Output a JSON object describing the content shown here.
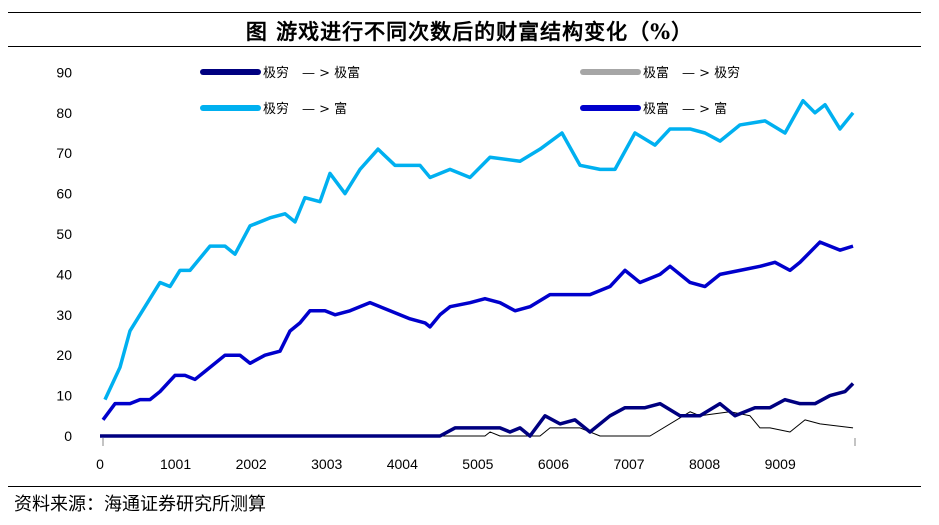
{
  "title": "图  游戏进行不同次数后的财富结构变化（%）",
  "source": "资料来源：海通证券研究所测算",
  "chart_data": {
    "type": "line",
    "title": "图  游戏进行不同次数后的财富结构变化（%）",
    "xlabel": "",
    "ylabel": "",
    "xlim": [
      0,
      10000
    ],
    "ylim": [
      0,
      90
    ],
    "x_ticks": [
      "0",
      "1001",
      "2002",
      "3003",
      "4004",
      "5005",
      "6006",
      "7007",
      "8008",
      "9009"
    ],
    "y_ticks": [
      "0",
      "10",
      "20",
      "30",
      "40",
      "50",
      "60",
      "70",
      "80",
      "90"
    ],
    "grid": false,
    "legend_placement": "top",
    "series": [
      {
        "name": "极穷　— > 极富",
        "color": "#000080",
        "points": [
          [
            0,
            0
          ],
          [
            4503,
            0
          ],
          [
            4702,
            2
          ],
          [
            4901,
            2
          ],
          [
            5166,
            2
          ],
          [
            5298,
            2
          ],
          [
            5430,
            1
          ],
          [
            5563,
            2
          ],
          [
            5695,
            0
          ],
          [
            5894,
            5
          ],
          [
            6093,
            3
          ],
          [
            6291,
            4
          ],
          [
            6490,
            1
          ],
          [
            6755,
            5
          ],
          [
            6954,
            7
          ],
          [
            7219,
            7
          ],
          [
            7417,
            8
          ],
          [
            7682,
            5
          ],
          [
            7947,
            5
          ],
          [
            8212,
            8
          ],
          [
            8411,
            5
          ],
          [
            8675,
            7
          ],
          [
            8874,
            7
          ],
          [
            9073,
            9
          ],
          [
            9272,
            8
          ],
          [
            9470,
            8
          ],
          [
            9669,
            10
          ],
          [
            9868,
            11
          ],
          [
            9974,
            13
          ]
        ]
      },
      {
        "name": "极富　— > 极穷",
        "color": "#A6A6A6",
        "line_color": "#000000",
        "points": [
          [
            0,
            0
          ],
          [
            5099,
            0
          ],
          [
            5166,
            1
          ],
          [
            5298,
            0
          ],
          [
            5828,
            0
          ],
          [
            5960,
            2
          ],
          [
            6358,
            2
          ],
          [
            6623,
            0
          ],
          [
            7285,
            0
          ],
          [
            7815,
            6
          ],
          [
            7947,
            5
          ],
          [
            8344,
            6
          ],
          [
            8609,
            5
          ],
          [
            8742,
            2
          ],
          [
            8874,
            2
          ],
          [
            9139,
            1
          ],
          [
            9338,
            4
          ],
          [
            9536,
            3
          ],
          [
            9974,
            2
          ]
        ]
      },
      {
        "name": "极穷　— > 富",
        "color": "#00B0F0",
        "points": [
          [
            66,
            9
          ],
          [
            265,
            17
          ],
          [
            397,
            26
          ],
          [
            795,
            38
          ],
          [
            927,
            37
          ],
          [
            1060,
            41
          ],
          [
            1192,
            41
          ],
          [
            1457,
            47
          ],
          [
            1656,
            47
          ],
          [
            1788,
            45
          ],
          [
            1987,
            52
          ],
          [
            2252,
            54
          ],
          [
            2450,
            55
          ],
          [
            2583,
            53
          ],
          [
            2715,
            59
          ],
          [
            2914,
            58
          ],
          [
            3046,
            65
          ],
          [
            3245,
            60
          ],
          [
            3444,
            66
          ],
          [
            3682,
            71
          ],
          [
            3907,
            67
          ],
          [
            4238,
            67
          ],
          [
            4371,
            64
          ],
          [
            4636,
            66
          ],
          [
            4901,
            64
          ],
          [
            5166,
            69
          ],
          [
            5563,
            68
          ],
          [
            5828,
            71
          ],
          [
            6119,
            75
          ],
          [
            6358,
            67
          ],
          [
            6623,
            66
          ],
          [
            6821,
            66
          ],
          [
            7086,
            75
          ],
          [
            7351,
            72
          ],
          [
            7550,
            76
          ],
          [
            7815,
            76
          ],
          [
            8013,
            75
          ],
          [
            8212,
            73
          ],
          [
            8477,
            77
          ],
          [
            8808,
            78
          ],
          [
            9073,
            75
          ],
          [
            9311,
            83
          ],
          [
            9470,
            80
          ],
          [
            9603,
            82
          ],
          [
            9801,
            76
          ],
          [
            9974,
            80
          ]
        ]
      },
      {
        "name": "极富　— > 富",
        "color": "#0000CC",
        "points": [
          [
            40,
            4
          ],
          [
            199,
            8
          ],
          [
            397,
            8
          ],
          [
            530,
            9
          ],
          [
            662,
            9
          ],
          [
            795,
            11
          ],
          [
            993,
            15
          ],
          [
            1126,
            15
          ],
          [
            1258,
            14
          ],
          [
            1391,
            16
          ],
          [
            1656,
            20
          ],
          [
            1854,
            20
          ],
          [
            1987,
            18
          ],
          [
            2185,
            20
          ],
          [
            2384,
            21
          ],
          [
            2517,
            26
          ],
          [
            2649,
            28
          ],
          [
            2781,
            31
          ],
          [
            2980,
            31
          ],
          [
            3113,
            30
          ],
          [
            3311,
            31
          ],
          [
            3576,
            33
          ],
          [
            3841,
            31
          ],
          [
            4106,
            29
          ],
          [
            4305,
            28
          ],
          [
            4371,
            27
          ],
          [
            4503,
            30
          ],
          [
            4636,
            32
          ],
          [
            4901,
            33
          ],
          [
            5099,
            34
          ],
          [
            5298,
            33
          ],
          [
            5497,
            31
          ],
          [
            5695,
            32
          ],
          [
            5960,
            35
          ],
          [
            6159,
            35
          ],
          [
            6490,
            35
          ],
          [
            6755,
            37
          ],
          [
            6954,
            41
          ],
          [
            7152,
            38
          ],
          [
            7417,
            40
          ],
          [
            7550,
            42
          ],
          [
            7815,
            38
          ],
          [
            8013,
            37
          ],
          [
            8212,
            40
          ],
          [
            8477,
            41
          ],
          [
            8742,
            42
          ],
          [
            8940,
            43
          ],
          [
            9139,
            41
          ],
          [
            9272,
            43
          ],
          [
            9536,
            48
          ],
          [
            9801,
            46
          ],
          [
            9974,
            47
          ]
        ]
      }
    ]
  }
}
